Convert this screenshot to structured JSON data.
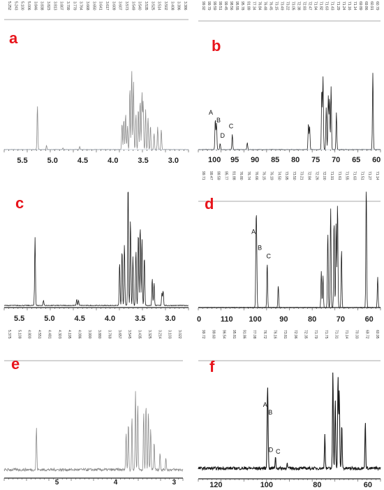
{
  "figure": {
    "panels": [
      {
        "id": "a",
        "letter": "a",
        "type": "1H",
        "ticks": [
          "5.5",
          "5.0",
          "4.5",
          "4.0",
          "3.5",
          "3.0"
        ],
        "peak_labels": [],
        "header_values": [
          "5.252",
          "5.243",
          "5.100",
          "5.006",
          "3.846",
          "3.838",
          "3.823",
          "3.813",
          "3.807",
          "3.799",
          "3.779",
          "3.764",
          "3.668",
          "3.650",
          "3.641",
          "3.617",
          "3.609",
          "3.607",
          "3.573",
          "3.549",
          "3.540",
          "3.535",
          "3.525",
          "3.514",
          "3.502",
          "3.408",
          "3.396",
          "3.386"
        ]
      },
      {
        "id": "b",
        "letter": "b",
        "type": "13C",
        "ticks": [
          "100",
          "95",
          "90",
          "85",
          "80",
          "75",
          "70",
          "65",
          "60"
        ],
        "peak_labels": [
          "A",
          "B",
          "D",
          "C"
        ],
        "header_values": [
          "99.92",
          "99.79",
          "99.59",
          "99.51",
          "99.45",
          "98.56",
          "95.55",
          "95.78",
          "91.89",
          "77.34",
          "76.84",
          "76.48",
          "76.45",
          "73.15",
          "73.49",
          "73.22",
          "73.05",
          "72.38",
          "72.83",
          "72.47",
          "71.94",
          "71.82",
          "71.63",
          "71.43",
          "71.29",
          "71.24",
          "71.16",
          "71.14",
          "69.89",
          "69.86",
          "60.91",
          "60.79"
        ]
      },
      {
        "id": "c",
        "letter": "c",
        "type": "1H",
        "ticks": [
          "5.5",
          "5.0",
          "4.5",
          "4.0",
          "3.5",
          "3.0"
        ],
        "peak_labels": [],
        "header_values": []
      },
      {
        "id": "d",
        "letter": "d",
        "type": "13C",
        "ticks": [
          "0",
          "110",
          "100",
          "90",
          "80",
          "70",
          "60"
        ],
        "peak_labels": [
          "A",
          "B",
          "C"
        ],
        "header_values": [
          "99.71",
          "99.47",
          "99.59",
          "95.77",
          "91.88",
          "76.80",
          "76.74",
          "76.66",
          "76.15",
          "76.19",
          "74.50",
          "73.95",
          "73.50",
          "73.21",
          "72.84",
          "72.26",
          "72.00",
          "71.91",
          "71.61",
          "71.55",
          "71.63",
          "71.51",
          "71.27",
          "71.14"
        ]
      },
      {
        "id": "e",
        "letter": "e",
        "type": "1H",
        "ticks": [
          "5",
          "4",
          "3"
        ],
        "peak_labels": [],
        "header_values": [
          "5.375",
          "5.109",
          "4.800",
          "4.551",
          "4.481",
          "4.303",
          "4.195",
          "4.086",
          "3.990",
          "3.880",
          "3.769",
          "3.657",
          "3.545",
          "3.435",
          "3.325",
          "3.214",
          "3.103",
          "3.022"
        ]
      },
      {
        "id": "f",
        "letter": "f",
        "type": "13C",
        "ticks": [
          "120",
          "100",
          "80",
          "60"
        ],
        "peak_labels": [
          "A",
          "B",
          "D",
          "C"
        ],
        "header_values": [
          "99.72",
          "99.60",
          "96.54",
          "95.81",
          "91.86",
          "77.08",
          "76.72",
          "76.16",
          "73.81",
          "72.96",
          "72.35",
          "71.79",
          "71.75",
          "71.31",
          "71.14",
          "70.33",
          "69.72",
          "60.95"
        ]
      }
    ]
  },
  "chart_data": [
    {
      "panel": "a",
      "type": "line",
      "x_range": [
        5.8,
        2.75
      ],
      "x_ticks": [
        5.5,
        5.0,
        4.5,
        4.0,
        3.5,
        3.0
      ],
      "reversed_axis": true,
      "peaks": [
        [
          5.25,
          0.55
        ],
        [
          5.1,
          0.05
        ],
        [
          4.83,
          0.02
        ],
        [
          4.55,
          0.04
        ],
        [
          3.85,
          0.33
        ],
        [
          3.82,
          0.38
        ],
        [
          3.79,
          0.45
        ],
        [
          3.76,
          0.3
        ],
        [
          3.72,
          0.78
        ],
        [
          3.69,
          1.0
        ],
        [
          3.66,
          0.85
        ],
        [
          3.62,
          0.45
        ],
        [
          3.58,
          0.52
        ],
        [
          3.55,
          0.62
        ],
        [
          3.52,
          0.72
        ],
        [
          3.5,
          0.6
        ],
        [
          3.46,
          0.5
        ],
        [
          3.42,
          0.4
        ],
        [
          3.38,
          0.3
        ],
        [
          3.32,
          0.2
        ],
        [
          3.26,
          0.28
        ],
        [
          3.2,
          0.25
        ]
      ]
    },
    {
      "panel": "b",
      "type": "line",
      "x_range": [
        104,
        59
      ],
      "x_ticks": [
        100,
        95,
        90,
        85,
        80,
        75,
        70,
        65,
        60
      ],
      "reversed_axis": true,
      "peaks": [
        [
          99.8,
          0.4
        ],
        [
          99.5,
          0.34
        ],
        [
          98.6,
          0.08
        ],
        [
          95.6,
          0.2
        ],
        [
          91.9,
          0.09
        ],
        [
          76.8,
          0.34
        ],
        [
          76.5,
          0.3
        ],
        [
          73.5,
          0.8
        ],
        [
          73.2,
          0.95
        ],
        [
          72.4,
          0.55
        ],
        [
          71.9,
          0.7
        ],
        [
          71.6,
          0.68
        ],
        [
          71.2,
          0.82
        ],
        [
          69.9,
          0.48
        ],
        [
          60.9,
          1.0
        ]
      ],
      "annotations": [
        "A",
        "B",
        "D",
        "C"
      ]
    },
    {
      "panel": "c",
      "type": "line",
      "x_range": [
        5.75,
        2.7
      ],
      "x_ticks": [
        5.5,
        5.0,
        4.5,
        4.0,
        3.5,
        3.0
      ],
      "reversed_axis": true,
      "peaks": [
        [
          5.24,
          0.55
        ],
        [
          5.1,
          0.04
        ],
        [
          4.55,
          0.05
        ],
        [
          4.52,
          0.04
        ],
        [
          3.84,
          0.35
        ],
        [
          3.8,
          0.45
        ],
        [
          3.76,
          0.5
        ],
        [
          3.7,
          1.0
        ],
        [
          3.66,
          0.7
        ],
        [
          3.62,
          0.4
        ],
        [
          3.57,
          0.45
        ],
        [
          3.53,
          0.6
        ],
        [
          3.5,
          0.65
        ],
        [
          3.47,
          0.55
        ],
        [
          3.43,
          0.4
        ],
        [
          3.3,
          0.22
        ],
        [
          3.27,
          0.18
        ],
        [
          3.14,
          0.1
        ],
        [
          3.12,
          0.12
        ]
      ]
    },
    {
      "panel": "d",
      "type": "line",
      "x_range": [
        120,
        56
      ],
      "x_ticks": [
        110,
        100,
        90,
        80,
        70,
        60
      ],
      "reversed_axis": true,
      "peaks": [
        [
          99.7,
          0.55
        ],
        [
          99.5,
          0.45
        ],
        [
          95.8,
          0.37
        ],
        [
          91.9,
          0.18
        ],
        [
          76.8,
          0.3
        ],
        [
          76.2,
          0.26
        ],
        [
          74.5,
          0.62
        ],
        [
          73.5,
          0.82
        ],
        [
          72.3,
          0.72
        ],
        [
          71.6,
          0.7
        ],
        [
          71.1,
          0.86
        ],
        [
          69.7,
          0.48
        ],
        [
          61.0,
          1.0
        ],
        [
          57.0,
          0.25
        ]
      ],
      "annotations": [
        "A",
        "B",
        "C"
      ]
    },
    {
      "panel": "e",
      "type": "line",
      "x_range": [
        5.9,
        2.85
      ],
      "x_ticks": [
        5,
        4,
        3
      ],
      "reversed_axis": true,
      "peaks": [
        [
          5.35,
          0.45
        ],
        [
          3.82,
          0.4
        ],
        [
          3.78,
          0.5
        ],
        [
          3.72,
          0.55
        ],
        [
          3.66,
          0.85
        ],
        [
          3.62,
          0.7
        ],
        [
          3.52,
          0.6
        ],
        [
          3.48,
          0.7
        ],
        [
          3.44,
          0.62
        ],
        [
          3.4,
          0.45
        ],
        [
          3.34,
          0.3
        ],
        [
          3.24,
          0.18
        ],
        [
          3.14,
          0.12
        ]
      ]
    },
    {
      "panel": "f",
      "type": "line",
      "x_range": [
        127,
        55
      ],
      "x_ticks": [
        120,
        100,
        80,
        60
      ],
      "reversed_axis": true,
      "peaks": [
        [
          99.7,
          0.55
        ],
        [
          99.5,
          0.48
        ],
        [
          96.5,
          0.12
        ],
        [
          91.9,
          0.05
        ],
        [
          77.0,
          0.35
        ],
        [
          73.8,
          1.0
        ],
        [
          72.9,
          0.72
        ],
        [
          71.8,
          0.95
        ],
        [
          71.3,
          0.8
        ],
        [
          70.3,
          0.45
        ],
        [
          61.0,
          0.48
        ]
      ],
      "annotations": [
        "A",
        "B",
        "D",
        "C"
      ]
    }
  ],
  "colors": {
    "panel_letter": "#e8141b",
    "line": "#1a1a1a",
    "grey_line": "#8a8a8a"
  }
}
